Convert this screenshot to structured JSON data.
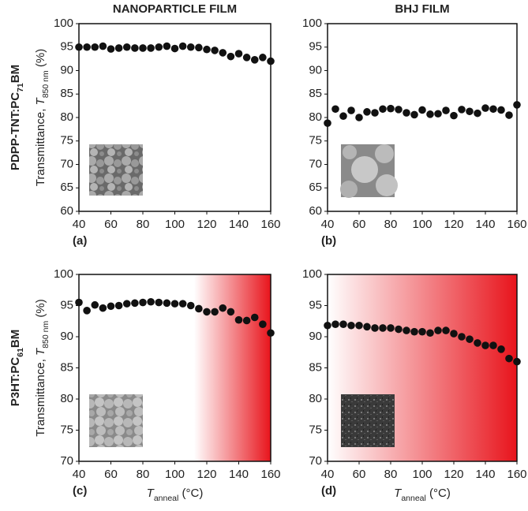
{
  "chart_data": [
    {
      "type": "scatter",
      "column_title": "NANOPARTICLE FILM",
      "row_label": [
        "PDPP-TNT:PC",
        "71",
        "BM"
      ],
      "y_label": [
        "Transmittance, ",
        "T",
        "850 nm",
        " (%)"
      ],
      "panel_label": "(a)",
      "color": "#111111",
      "x": [
        40,
        45,
        50,
        55,
        60,
        65,
        70,
        75,
        80,
        85,
        90,
        95,
        100,
        105,
        110,
        115,
        120,
        125,
        130,
        135,
        140,
        145,
        150,
        155,
        160
      ],
      "values": [
        95,
        95,
        95,
        95.2,
        94.6,
        94.8,
        95,
        94.8,
        94.8,
        94.8,
        95,
        95.2,
        94.7,
        95.2,
        95,
        94.9,
        94.5,
        94.3,
        93.8,
        93,
        93.6,
        92.8,
        92.3,
        92.8,
        92
      ],
      "xlim": [
        40,
        160
      ],
      "ylim": [
        60,
        100
      ],
      "xticks": [
        40,
        60,
        80,
        100,
        120,
        140,
        160
      ],
      "yticks": [
        60,
        65,
        70,
        75,
        80,
        85,
        90,
        95,
        100
      ]
    },
    {
      "type": "scatter",
      "column_title": "BHJ FILM",
      "panel_label": "(b)",
      "color": "#111111",
      "x": [
        40,
        45,
        50,
        55,
        60,
        65,
        70,
        75,
        80,
        85,
        90,
        95,
        100,
        105,
        110,
        115,
        120,
        125,
        130,
        135,
        140,
        145,
        150,
        155,
        160
      ],
      "values": [
        78.8,
        81.8,
        80.3,
        81.5,
        80,
        81.2,
        81,
        81.8,
        81.9,
        81.7,
        81,
        80.6,
        81.6,
        80.7,
        80.8,
        81.5,
        80.4,
        81.7,
        81.3,
        80.9,
        82,
        81.8,
        81.6,
        80.5,
        82.7
      ],
      "xlim": [
        40,
        160
      ],
      "ylim": [
        60,
        100
      ],
      "xticks": [
        40,
        60,
        80,
        100,
        120,
        140,
        160
      ],
      "yticks": [
        60,
        65,
        70,
        75,
        80,
        85,
        90,
        95,
        100
      ]
    },
    {
      "type": "scatter",
      "row_label": [
        "P3HT:PC",
        "61",
        "BM"
      ],
      "y_label": [
        "Transmittance, ",
        "T",
        "850 nm",
        " (%)"
      ],
      "x_label": [
        "T",
        "anneal",
        " (°C)"
      ],
      "panel_label": "(c)",
      "color": "#111111",
      "shade": {
        "start": 112,
        "end": 160,
        "color": "#e8141c"
      },
      "x": [
        40,
        45,
        50,
        55,
        60,
        65,
        70,
        75,
        80,
        85,
        90,
        95,
        100,
        105,
        110,
        115,
        120,
        125,
        130,
        135,
        140,
        145,
        150,
        155,
        160
      ],
      "values": [
        95.5,
        94.2,
        95.1,
        94.6,
        94.9,
        95,
        95.3,
        95.4,
        95.5,
        95.6,
        95.5,
        95.4,
        95.3,
        95.3,
        95,
        94.5,
        94,
        94,
        94.6,
        94,
        92.7,
        92.6,
        93.1,
        92,
        90.6
      ],
      "xlim": [
        40,
        160
      ],
      "ylim": [
        70,
        100
      ],
      "xticks": [
        40,
        60,
        80,
        100,
        120,
        140,
        160
      ],
      "yticks": [
        70,
        75,
        80,
        85,
        90,
        95,
        100
      ]
    },
    {
      "type": "scatter",
      "x_label": [
        "T",
        "anneal",
        " (°C)"
      ],
      "panel_label": "(d)",
      "color": "#111111",
      "shade": {
        "start": 40,
        "end": 160,
        "color": "#e8141c"
      },
      "x": [
        40,
        45,
        50,
        55,
        60,
        65,
        70,
        75,
        80,
        85,
        90,
        95,
        100,
        105,
        110,
        115,
        120,
        125,
        130,
        135,
        140,
        145,
        150,
        155,
        160
      ],
      "values": [
        91.8,
        92,
        92,
        91.8,
        91.8,
        91.6,
        91.4,
        91.4,
        91.4,
        91.2,
        91,
        90.8,
        90.8,
        90.6,
        91,
        91,
        90.5,
        90,
        89.6,
        89,
        88.6,
        88.6,
        88,
        86.5,
        86
      ],
      "xlim": [
        40,
        160
      ],
      "ylim": [
        70,
        100
      ],
      "xticks": [
        40,
        60,
        80,
        100,
        120,
        140,
        160
      ],
      "yticks": [
        70,
        75,
        80,
        85,
        90,
        95,
        100
      ]
    }
  ]
}
